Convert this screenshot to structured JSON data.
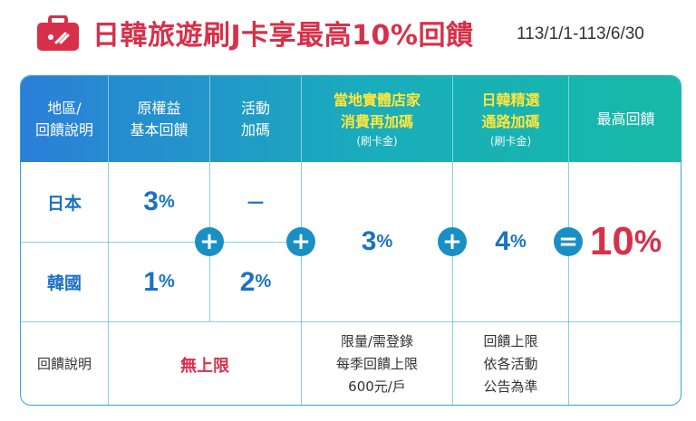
{
  "header": {
    "title": "日韓旅遊刷J卡享最高10%回饋",
    "period": "113/1/1-113/6/30",
    "icon": "suitcase-icon",
    "brand_color": "#d8304a"
  },
  "table": {
    "columns": {
      "region": [
        "地區/",
        "回饋說明"
      ],
      "base": [
        "原權益",
        "基本回饋"
      ],
      "activity": [
        "活動",
        "加碼"
      ],
      "local": {
        "lines": [
          "當地實體店家",
          "消費再加碼"
        ],
        "note": "(刷卡金)"
      },
      "channel": {
        "lines": [
          "日韓精選",
          "通路加碼"
        ],
        "note": "(刷卡金)"
      },
      "max": "最高回饋"
    },
    "rows": {
      "japan": {
        "label": "日本",
        "base": "3",
        "activity": "－"
      },
      "korea": {
        "label": "韓國",
        "base": "1",
        "activity": "2"
      }
    },
    "percent_unit": "%",
    "local_value": "3",
    "channel_value": "4",
    "max_value": "10",
    "operators": {
      "plus": "+",
      "equals": "="
    },
    "notes": {
      "label": "回饋說明",
      "unlimited": "無上限",
      "local": [
        "限量/需登錄",
        "每季回饋上限",
        "600元/戶"
      ],
      "channel": [
        "回饋上限",
        "依各活動",
        "公告為準"
      ]
    }
  }
}
